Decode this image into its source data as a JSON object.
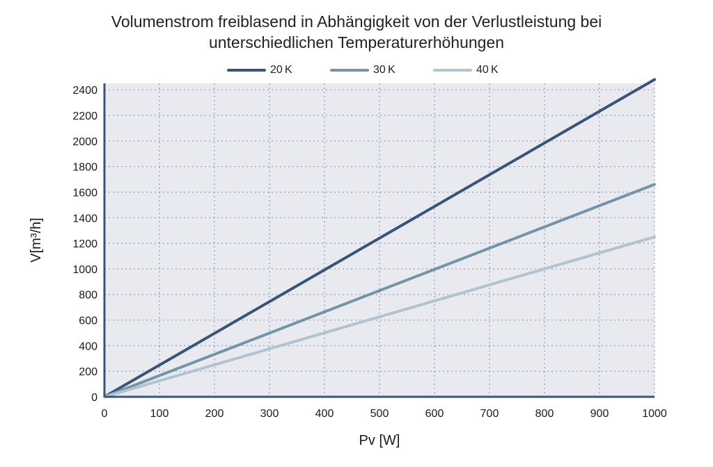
{
  "chart_data": {
    "type": "line",
    "title_line1": "Volumenstrom freiblasend in Abhängigkeit von der Verlustleistung bei",
    "title_line2": "unterschiedlichen Temperaturerhöhungen",
    "xlabel": "Pv [W]",
    "ylabel": "V[m³/h]",
    "xlim": [
      0,
      1000
    ],
    "ylim": [
      0,
      2450
    ],
    "xticks": [
      0,
      100,
      200,
      300,
      400,
      500,
      600,
      700,
      800,
      900,
      1000
    ],
    "yticks": [
      0,
      200,
      400,
      600,
      800,
      1000,
      1200,
      1400,
      1600,
      1800,
      2000,
      2200,
      2400
    ],
    "grid": true,
    "legend_position": "top-center",
    "series": [
      {
        "name": "20 K",
        "color": "#3a5378",
        "x": [
          0,
          1000
        ],
        "y": [
          0,
          2480
        ]
      },
      {
        "name": "30 K",
        "color": "#7393a7",
        "x": [
          0,
          1000
        ],
        "y": [
          0,
          1660
        ]
      },
      {
        "name": "40 K",
        "color": "#b1c3ce",
        "x": [
          0,
          1000
        ],
        "y": [
          0,
          1250
        ]
      }
    ],
    "colors": {
      "plot_background": "#e9e9f0",
      "axis": "#3a5378",
      "grid": "#8b9bc0"
    }
  }
}
